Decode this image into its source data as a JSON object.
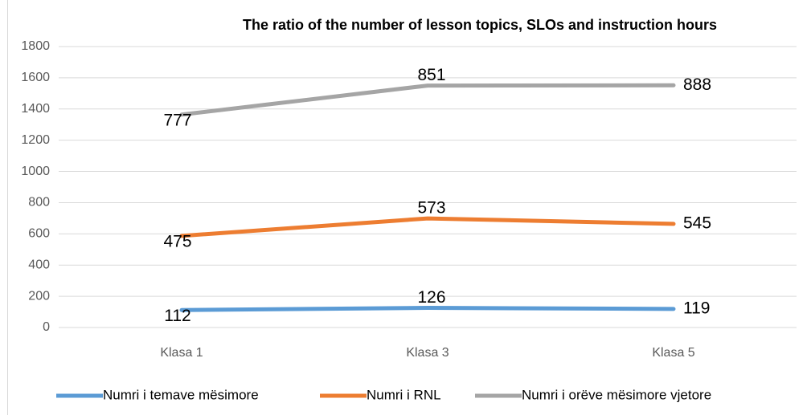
{
  "chart_data": {
    "type": "line",
    "stacked": true,
    "title": "The ratio of the number of lesson topics, SLOs and instruction hours",
    "categories": [
      "Klasa 1",
      "Klasa 3",
      "Klasa 5"
    ],
    "series": [
      {
        "name": "Numri i temave mësimore",
        "color": "#5b9bd5",
        "values": [
          112,
          126,
          119
        ]
      },
      {
        "name": "Numri i  RNL",
        "color": "#ed7d31",
        "values": [
          475,
          573,
          545
        ]
      },
      {
        "name": "Numri i orëve mësimore vjetore",
        "color": "#a5a5a5",
        "values": [
          777,
          851,
          888
        ]
      }
    ],
    "ylim": [
      0,
      1800
    ],
    "yticks": [
      0,
      200,
      400,
      600,
      800,
      1000,
      1200,
      1400,
      1600,
      1800
    ],
    "grid": true
  }
}
